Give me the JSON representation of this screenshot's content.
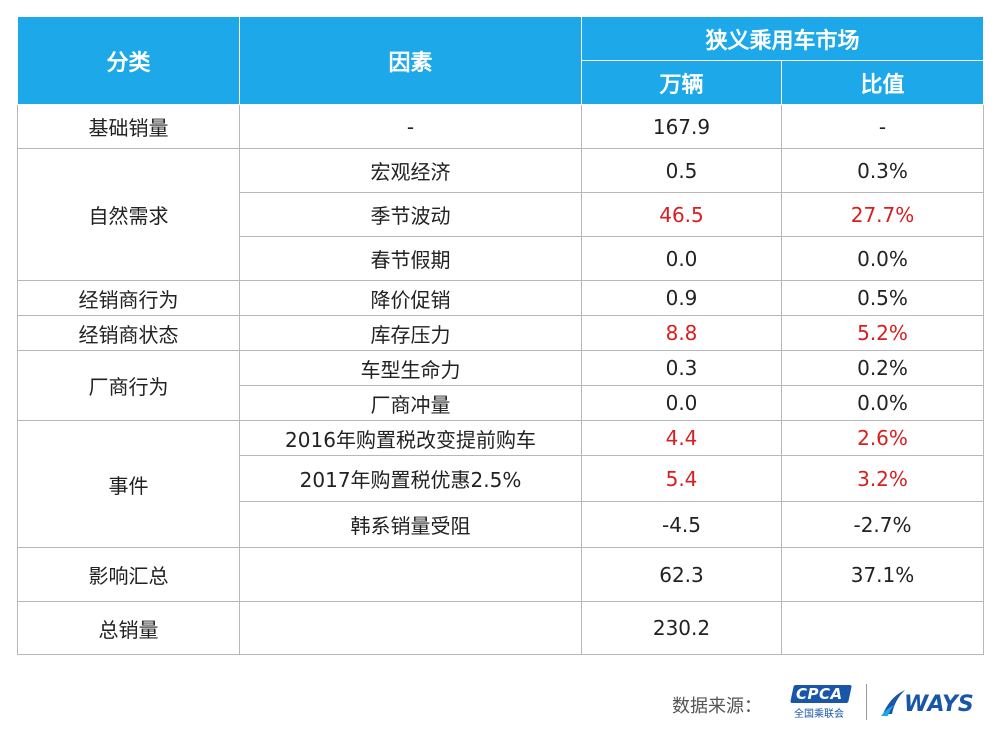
{
  "header": {
    "col_category": "分类",
    "col_factor": "因素",
    "group_title": "狭义乘用车市场",
    "col_units": "万辆",
    "col_ratio": "比值"
  },
  "rows": [
    {
      "category": "基础销量",
      "factor": "-",
      "units": "167.9",
      "ratio": "-"
    },
    {
      "category": "自然需求",
      "factor": "宏观经济",
      "units": "0.5",
      "ratio": "0.3%"
    },
    {
      "factor": "季节波动",
      "units": "46.5",
      "ratio": "27.7%"
    },
    {
      "factor": "春节假期",
      "units": "0.0",
      "ratio": "0.0%"
    },
    {
      "category": "经销商行为",
      "factor": "降价促销",
      "units": "0.9",
      "ratio": "0.5%"
    },
    {
      "category": "经销商状态",
      "factor": "库存压力",
      "units": "8.8",
      "ratio": "5.2%"
    },
    {
      "category": "厂商行为",
      "factor": "车型生命力",
      "units": "0.3",
      "ratio": "0.2%"
    },
    {
      "factor": "厂商冲量",
      "units": "0.0",
      "ratio": "0.0%"
    },
    {
      "category": "事件",
      "factor": "2016年购置税改变提前购车",
      "units": "4.4",
      "ratio": "2.6%"
    },
    {
      "factor": "2017年购置税优惠2.5%",
      "units": "5.4",
      "ratio": "3.2%"
    },
    {
      "factor": "韩系销量受阻",
      "units": "-4.5",
      "ratio": "-2.7%"
    },
    {
      "category": "影响汇总",
      "factor": "",
      "units": "62.3",
      "ratio": "37.1%"
    },
    {
      "category": "总销量",
      "factor": "",
      "units": "230.2",
      "ratio": ""
    }
  ],
  "footer": {
    "source_label": "数据来源：",
    "cpca_logo_text": "CPCA",
    "cpca_logo_sub": "全国乘联会",
    "ways_logo_text": "WAYS"
  },
  "colors": {
    "header_bg": "#1da9e9",
    "highlight_red": "#d81e1e",
    "logo_blue": "#1a56a8"
  }
}
